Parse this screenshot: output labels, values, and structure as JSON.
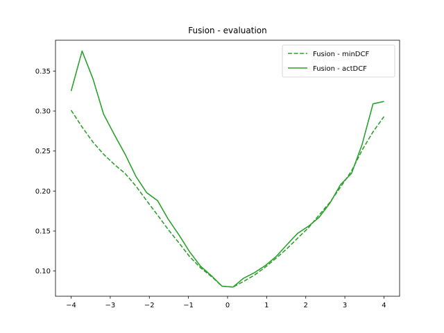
{
  "chart_data": {
    "type": "line",
    "title": "Fusion - evaluation",
    "xlabel": "",
    "ylabel": "",
    "xlim": [
      -4.4,
      4.4
    ],
    "ylim": [
      0.0685,
      0.3885
    ],
    "x_ticks": [
      -4,
      -3,
      -2,
      -1,
      0,
      1,
      2,
      3,
      4
    ],
    "x_tick_labels": [
      "−4",
      "−3",
      "−2",
      "−1",
      "0",
      "1",
      "2",
      "3",
      "4"
    ],
    "y_ticks": [
      0.1,
      0.15,
      0.2,
      0.25,
      0.3,
      0.35
    ],
    "y_tick_labels": [
      "0.10",
      "0.15",
      "0.20",
      "0.25",
      "0.30",
      "0.35"
    ],
    "grid": false,
    "legend_position": "top-right",
    "series": [
      {
        "name": "Fusion - minDCF",
        "color": "#2ca02c",
        "linestyle": "dashed",
        "x": [
          -4.0,
          -3.72,
          -3.44,
          -3.17,
          -2.89,
          -2.62,
          -2.34,
          -2.07,
          -1.79,
          -1.52,
          -1.24,
          -0.97,
          -0.69,
          -0.41,
          -0.14,
          0.14,
          0.41,
          0.69,
          0.97,
          1.24,
          1.52,
          1.79,
          2.07,
          2.34,
          2.62,
          2.89,
          3.17,
          3.44,
          3.72,
          4.0
        ],
        "y": [
          0.301,
          0.28,
          0.261,
          0.246,
          0.233,
          0.222,
          0.206,
          0.188,
          0.17,
          0.152,
          0.135,
          0.118,
          0.104,
          0.093,
          0.081,
          0.08,
          0.087,
          0.095,
          0.105,
          0.116,
          0.128,
          0.141,
          0.154,
          0.17,
          0.186,
          0.205,
          0.225,
          0.251,
          0.274,
          0.293
        ]
      },
      {
        "name": "Fusion - actDCF",
        "color": "#2ca02c",
        "linestyle": "solid",
        "x": [
          -4.0,
          -3.72,
          -3.44,
          -3.17,
          -2.89,
          -2.62,
          -2.34,
          -2.07,
          -1.79,
          -1.52,
          -1.24,
          -0.97,
          -0.69,
          -0.41,
          -0.14,
          0.14,
          0.41,
          0.69,
          0.97,
          1.24,
          1.52,
          1.79,
          2.07,
          2.34,
          2.62,
          2.89,
          3.17,
          3.44,
          3.72,
          4.0
        ],
        "y": [
          0.325,
          0.375,
          0.34,
          0.296,
          0.27,
          0.246,
          0.218,
          0.198,
          0.188,
          0.165,
          0.145,
          0.124,
          0.106,
          0.094,
          0.081,
          0.08,
          0.091,
          0.098,
          0.107,
          0.118,
          0.133,
          0.147,
          0.156,
          0.167,
          0.185,
          0.208,
          0.222,
          0.258,
          0.309,
          0.312
        ]
      }
    ]
  }
}
